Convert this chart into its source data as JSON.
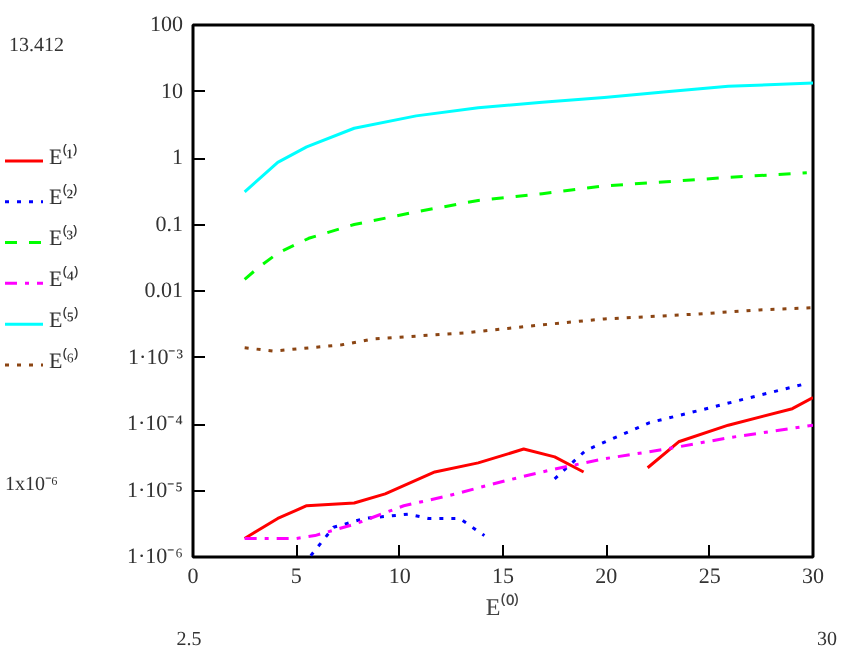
{
  "chart_data": {
    "type": "line",
    "xlabel": "E⁽⁰⁾",
    "log": "y",
    "grid": false,
    "legend": "left",
    "marker": "none",
    "xlim": [
      0,
      30
    ],
    "xticks": [
      0,
      5,
      10,
      15,
      20,
      25,
      30
    ],
    "ylim": [
      1e-06,
      100
    ],
    "yticks": [
      {
        "value": 1e-06,
        "label": "1·10⁻⁶"
      },
      {
        "value": 1e-05,
        "label": "1·10⁻⁵"
      },
      {
        "value": 0.0001,
        "label": "1·10⁻⁴"
      },
      {
        "value": 0.001,
        "label": "1·10⁻³"
      },
      0.01,
      0.1,
      1,
      10,
      100
    ],
    "annotations": [
      "13.412",
      "1x10⁻⁶",
      "2.5",
      "30"
    ],
    "series": [
      {
        "name": "E⁽¹⁾",
        "color": "#ff0000",
        "line_style": "solid",
        "x": [
          2.5,
          4.1,
          5.5,
          7.8,
          9.3,
          11.7,
          13.8,
          16.0,
          17.5,
          18.9,
          20.5,
          22.0,
          23.5,
          25.9,
          29,
          30
        ],
        "values": [
          1.9e-06,
          3.8e-06,
          5.9e-06,
          6.5e-06,
          8.9e-06,
          1.9e-05,
          2.6e-05,
          4.2e-05,
          3.2e-05,
          1.9e-05,
          null,
          2.2e-05,
          5.4e-05,
          9.6e-05,
          0.00017,
          0.00025
        ]
      },
      {
        "name": "E⁽²⁾",
        "color": "#0000ff",
        "line_style": "dotted",
        "x": [
          5.7,
          6.8,
          8.3,
          10.4,
          11.4,
          12.9,
          14.1,
          15.8,
          17.5,
          19.0,
          20,
          22.1,
          24.5,
          27.5,
          29.6
        ],
        "values": [
          1.05e-06,
          2.8e-06,
          3.8e-06,
          4.4e-06,
          3.8e-06,
          3.8e-06,
          2.1e-06,
          null,
          1.5e-05,
          4e-05,
          5.5e-05,
          0.000105,
          0.00016,
          0.000275,
          0.0004
        ]
      },
      {
        "name": "E⁽³⁾",
        "color": "#00ff00",
        "line_style": "dashed",
        "x": [
          2.5,
          3.2,
          4.1,
          5.6,
          7.8,
          10.8,
          13.8,
          16.9,
          19.9,
          22.9,
          25.9,
          29.7
        ],
        "values": [
          0.015,
          0.023,
          0.037,
          0.062,
          0.1,
          0.155,
          0.23,
          0.29,
          0.38,
          0.44,
          0.51,
          0.6
        ]
      },
      {
        "name": "E⁽⁴⁾",
        "color": "#ff00ff",
        "line_style": "dashdot",
        "x": [
          2.5,
          5.0,
          5.9,
          7.8,
          10.2,
          12.4,
          15.1,
          17.5,
          19.9,
          22.9,
          25.9,
          30
        ],
        "values": [
          1.9e-06,
          1.9e-06,
          2.1e-06,
          3.1e-06,
          5.9e-06,
          8.4e-06,
          1.4e-05,
          2.1e-05,
          3e-05,
          4.2e-05,
          6.2e-05,
          9.6e-05
        ]
      },
      {
        "name": "E⁽⁵⁾",
        "color": "#00ffff",
        "line_style": "solid",
        "x": [
          2.5,
          4.1,
          5.5,
          7.8,
          10.8,
          13.8,
          16.9,
          19.9,
          22.9,
          25.9,
          30
        ],
        "values": [
          0.31,
          0.86,
          1.47,
          2.8,
          4.3,
          5.7,
          6.9,
          8.1,
          9.9,
          12,
          13.4
        ]
      },
      {
        "name": "E⁽⁶⁾",
        "color": "#8b4513",
        "line_style": "dotted",
        "x": [
          2.5,
          3.9,
          7.2,
          8.7,
          13.2,
          16.9,
          19.9,
          24.4,
          27.4,
          30
        ],
        "values": [
          0.0014,
          0.00125,
          0.00155,
          0.0019,
          0.00235,
          0.0031,
          0.0038,
          0.0045,
          0.0052,
          0.0056
        ]
      }
    ]
  }
}
